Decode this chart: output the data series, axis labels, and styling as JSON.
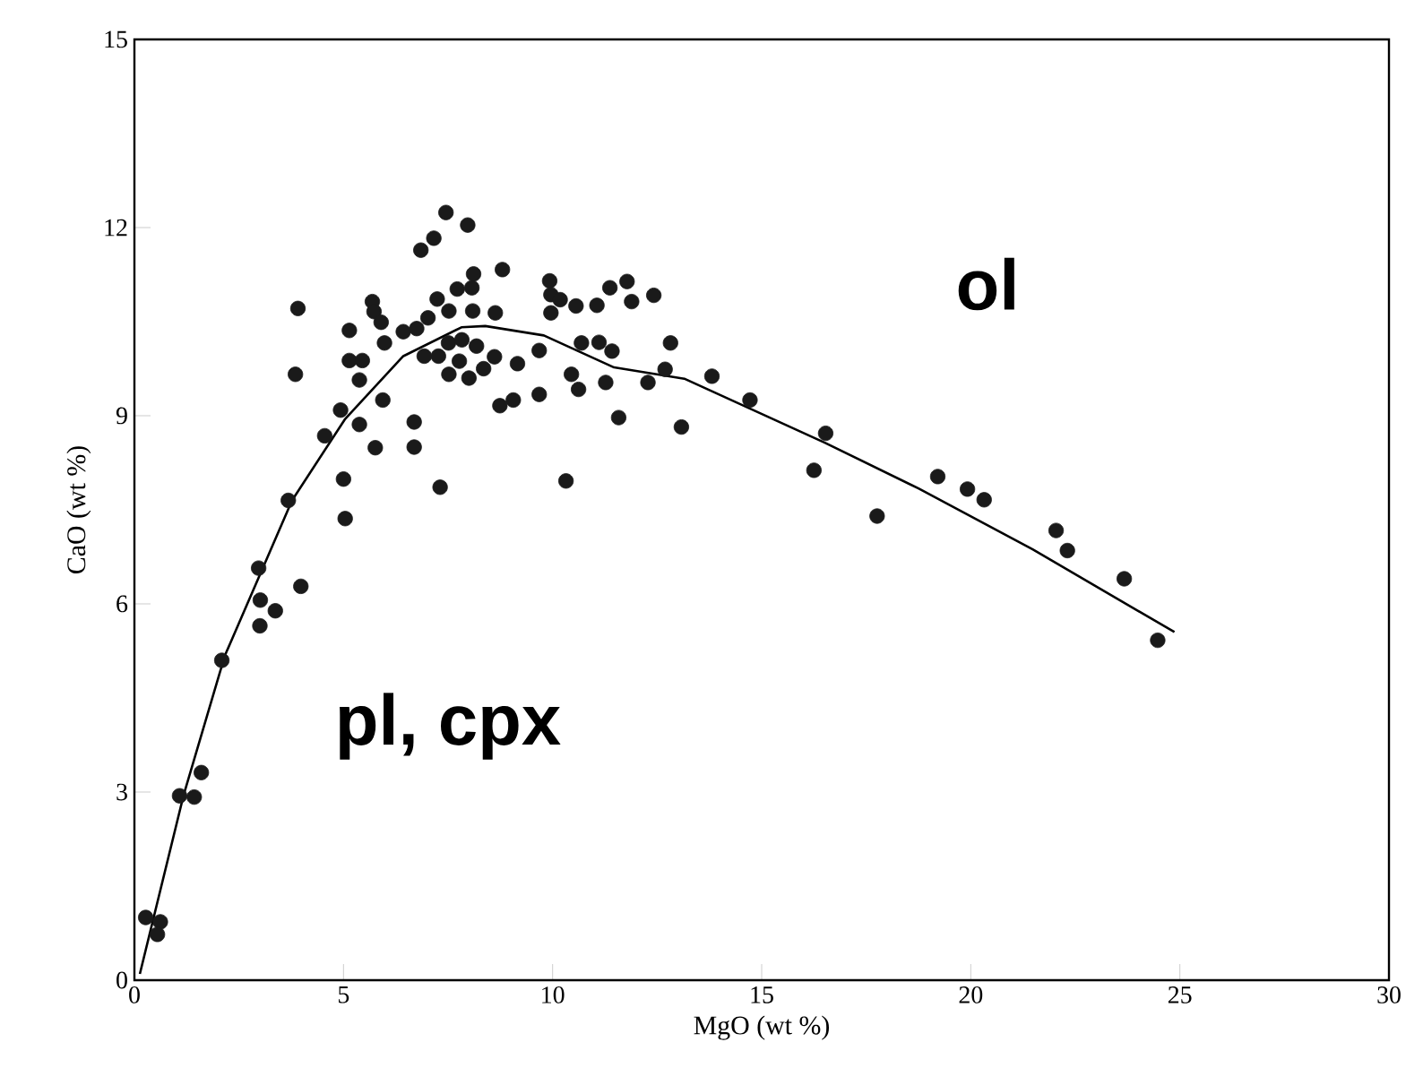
{
  "chart_data": {
    "type": "scatter",
    "xlabel": "MgO (wt %)",
    "ylabel": "CaO (wt %)",
    "xlim": [
      0,
      30
    ],
    "ylim": [
      0,
      15
    ],
    "xticks": [
      0,
      5,
      10,
      15,
      20,
      25,
      30
    ],
    "yticks": [
      0,
      3,
      6,
      9,
      12,
      15
    ],
    "annotations": [
      "ol",
      "pl, cpx"
    ],
    "series": [
      {
        "marker": "circle",
        "color": "#1a1a1a",
        "x": [
          7.45,
          7.97,
          7.16,
          6.85,
          8.11,
          8.8,
          3.91,
          5.69,
          5.73,
          5.9,
          5.14,
          7.24,
          7.72,
          8.07,
          7.52,
          8.09,
          8.63,
          7.02,
          6.43,
          6.75,
          5.98,
          7.51,
          7.83,
          8.18,
          6.93,
          7.27,
          7.77,
          8.61,
          7.52,
          8.0,
          8.35,
          5.14,
          5.45,
          5.38,
          3.85,
          4.93,
          5.94,
          5.38,
          4.55,
          5.76,
          6.69,
          6.69,
          5.0,
          7.31,
          5.04,
          3.68,
          2.97,
          3.98,
          3.01,
          3.37,
          3.0,
          8.74,
          9.16,
          9.06,
          9.68,
          9.68,
          9.93,
          9.96,
          10.18,
          9.96,
          10.56,
          11.06,
          11.37,
          11.78,
          11.89,
          12.42,
          10.69,
          11.11,
          11.42,
          12.82,
          10.45,
          10.62,
          11.27,
          12.28,
          12.69,
          13.81,
          11.58,
          13.08,
          14.72,
          10.32,
          16.53,
          16.25,
          17.76,
          19.21,
          19.92,
          20.32,
          22.04,
          22.31,
          23.67,
          24.47,
          2.09,
          1.6,
          1.08,
          1.43,
          0.27,
          0.62,
          0.55
        ],
        "values": [
          12.24,
          12.04,
          11.83,
          11.64,
          11.26,
          11.33,
          10.71,
          10.82,
          10.66,
          10.49,
          10.36,
          10.86,
          11.02,
          11.04,
          10.67,
          10.67,
          10.64,
          10.56,
          10.34,
          10.39,
          10.16,
          10.16,
          10.21,
          10.11,
          9.95,
          9.95,
          9.87,
          9.94,
          9.66,
          9.6,
          9.75,
          9.88,
          9.88,
          9.57,
          9.66,
          9.09,
          9.25,
          8.86,
          8.68,
          8.49,
          8.9,
          8.5,
          7.99,
          7.86,
          7.36,
          7.65,
          6.57,
          6.28,
          6.06,
          5.89,
          5.65,
          9.16,
          9.83,
          9.25,
          9.34,
          10.04,
          11.15,
          10.93,
          10.85,
          10.64,
          10.75,
          10.76,
          11.04,
          11.14,
          10.82,
          10.92,
          10.16,
          10.17,
          10.03,
          10.16,
          9.66,
          9.42,
          9.53,
          9.53,
          9.74,
          9.63,
          8.97,
          8.82,
          9.25,
          7.96,
          8.72,
          8.13,
          7.4,
          8.03,
          7.83,
          7.66,
          7.17,
          6.85,
          6.4,
          5.42,
          5.1,
          3.31,
          2.94,
          2.92,
          1.0,
          0.93,
          0.73
        ]
      },
      {
        "type": "line",
        "marker": "none",
        "line_style": "solid",
        "color": "#000000",
        "x": [
          0.13,
          1.18,
          2.16,
          3.77,
          5.03,
          6.43,
          7.82,
          8.39,
          9.79,
          11.47,
          13.15,
          16.51,
          18.75,
          21.48,
          24.87
        ],
        "values": [
          0.1,
          2.96,
          5.17,
          7.65,
          8.94,
          9.95,
          10.41,
          10.43,
          10.28,
          9.77,
          9.59,
          8.57,
          7.84,
          6.87,
          5.55
        ]
      }
    ]
  }
}
